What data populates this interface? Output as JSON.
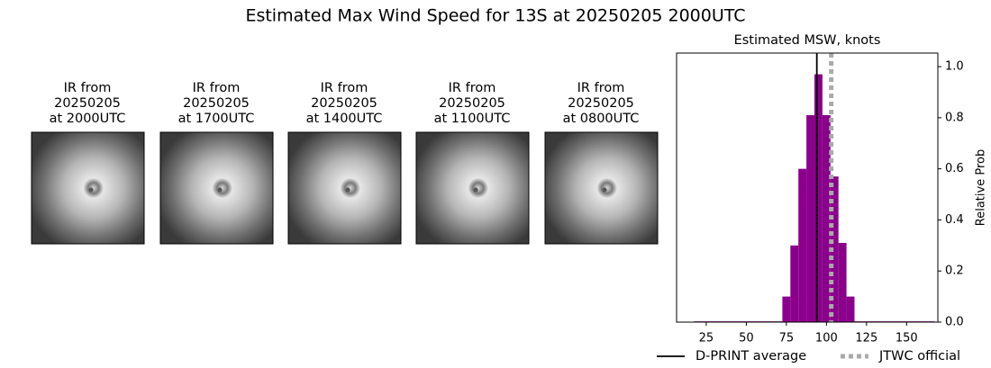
{
  "figure_title": "Estimated Max Wind Speed for 13S at 20250205 2000UTC",
  "panels": [
    {
      "title": [
        "IR from",
        "20250205",
        "at 2000UTC"
      ]
    },
    {
      "title": [
        "IR from",
        "20250205",
        "at 1700UTC"
      ]
    },
    {
      "title": [
        "IR from",
        "20250205",
        "at 1400UTC"
      ]
    },
    {
      "title": [
        "IR from",
        "20250205",
        "at 1100UTC"
      ]
    },
    {
      "title": [
        "IR from",
        "20250205",
        "at 0800UTC"
      ]
    }
  ],
  "chart_data": {
    "type": "histogram",
    "title": "Estimated MSW, knots",
    "ylabel": "Relative Prob",
    "color": "#8b008b",
    "bins": [
      17.5,
      22.5,
      27.5,
      32.5,
      37.5,
      42.5,
      47.5,
      52.5,
      57.5,
      62.5,
      67.5,
      72.5,
      77.5,
      82.5,
      87.5,
      92.5,
      97.5,
      102.5,
      107.5,
      112.5,
      117.5,
      122.5,
      127.5,
      132.5,
      137.5,
      142.5,
      147.5,
      152.5,
      157.5,
      162.5,
      167.5
    ],
    "values": [
      0.003,
      0.003,
      0.003,
      0.003,
      0.003,
      0.003,
      0.003,
      0.003,
      0.003,
      0.003,
      0.003,
      0.1,
      0.3,
      0.6,
      0.81,
      0.97,
      0.81,
      0.57,
      0.31,
      0.1,
      0.003,
      0.003,
      0.003,
      0.003,
      0.003,
      0.003,
      0.003,
      0.003,
      0.003,
      0.003
    ],
    "xlim": [
      6.5,
      169.5
    ],
    "xticks": [
      25,
      50,
      75,
      100,
      125,
      150
    ],
    "ylim": [
      0,
      1.053
    ],
    "yticks": [
      {
        "value": 0,
        "label": "0.0"
      },
      0.2,
      0.4,
      0.6,
      0.8,
      {
        "value": 1,
        "label": "1.0"
      }
    ],
    "y_axis_side": "right",
    "reference_lines": [
      {
        "name": "D-PRINT average",
        "value": 94,
        "color": "#000000",
        "style": "solid"
      },
      {
        "name": "JTWC official",
        "value": 103,
        "color": "#aaaaaa",
        "style": "dotted"
      }
    ]
  }
}
